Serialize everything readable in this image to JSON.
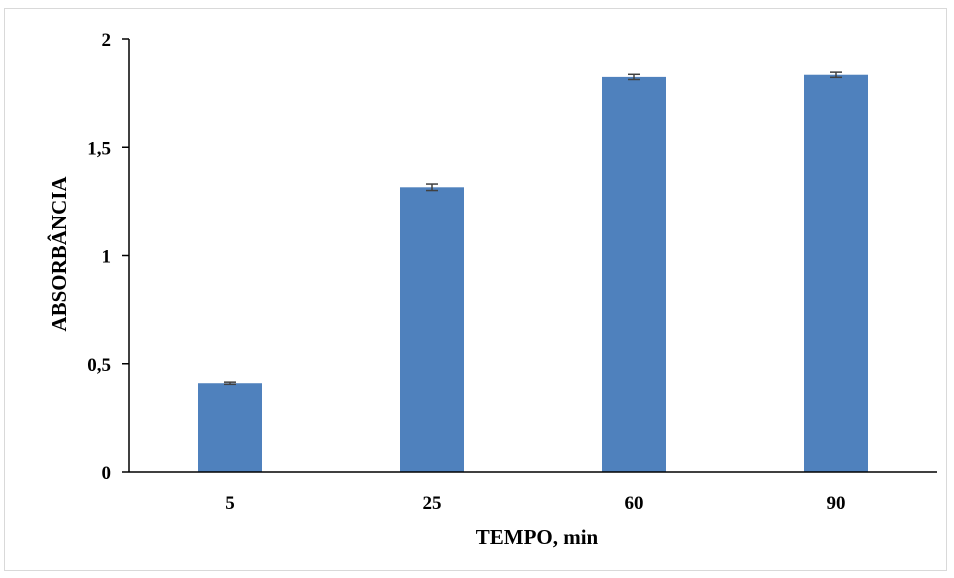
{
  "chart_data": {
    "type": "bar",
    "title": "",
    "xlabel": "TEMPO, min",
    "ylabel": "ABSORBÂNCIA",
    "categories": [
      "5",
      "25",
      "60",
      "90"
    ],
    "values": [
      0.41,
      1.315,
      1.825,
      1.835
    ],
    "errors": [
      0.005,
      0.015,
      0.012,
      0.012
    ],
    "ylim": [
      0,
      2
    ],
    "yticks": [
      0,
      0.5,
      1,
      1.5,
      2
    ],
    "ytick_labels": [
      "0",
      "0,5",
      "1",
      "1,5",
      "2"
    ],
    "grid": false,
    "legend": "none",
    "bar_color": "#4f81bd",
    "error_color": "#404040"
  }
}
